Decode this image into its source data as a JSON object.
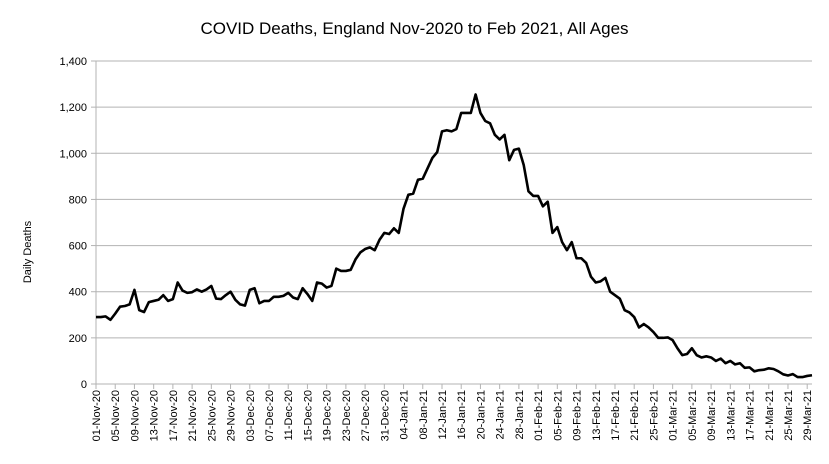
{
  "chart_data": {
    "type": "line",
    "title": "COVID Deaths, England Nov-2020 to Feb 2021, All Ages",
    "xlabel": "",
    "ylabel": "Daily Deaths",
    "ylim": [
      0,
      1400
    ],
    "yticks": [
      0,
      200,
      400,
      600,
      800,
      1000,
      1200,
      1400
    ],
    "ytick_labels": [
      "0",
      "200",
      "400",
      "600",
      "800",
      "1,000",
      "1,200",
      "1,400"
    ],
    "grid": true,
    "legend": "none",
    "line_color": "#000000",
    "x_tick_labels": [
      "01-Nov-20",
      "05-Nov-20",
      "09-Nov-20",
      "13-Nov-20",
      "17-Nov-20",
      "21-Nov-20",
      "25-Nov-20",
      "29-Nov-20",
      "03-Dec-20",
      "07-Dec-20",
      "11-Dec-20",
      "15-Dec-20",
      "19-Dec-20",
      "23-Dec-20",
      "27-Dec-20",
      "31-Dec-20",
      "04-Jan-21",
      "08-Jan-21",
      "12-Jan-21",
      "16-Jan-21",
      "20-Jan-21",
      "24-Jan-21",
      "28-Jan-21",
      "01-Feb-21",
      "05-Feb-21",
      "09-Feb-21",
      "13-Feb-21",
      "17-Feb-21",
      "21-Feb-21",
      "25-Feb-21",
      "01-Mar-21",
      "05-Mar-21",
      "09-Mar-21",
      "13-Mar-21",
      "17-Mar-21",
      "21-Mar-21",
      "25-Mar-21",
      "29-Mar-21"
    ],
    "x_start": "2020-11-01",
    "x_end": "2021-03-31",
    "values": [
      290,
      290,
      293,
      278,
      305,
      335,
      338,
      345,
      408,
      320,
      312,
      355,
      360,
      365,
      385,
      360,
      368,
      440,
      405,
      395,
      398,
      410,
      400,
      410,
      425,
      370,
      368,
      385,
      400,
      365,
      345,
      340,
      408,
      415,
      350,
      360,
      360,
      378,
      378,
      382,
      395,
      375,
      368,
      415,
      390,
      360,
      440,
      435,
      418,
      425,
      500,
      490,
      490,
      495,
      540,
      570,
      585,
      592,
      580,
      625,
      655,
      650,
      675,
      655,
      760,
      820,
      825,
      885,
      890,
      935,
      980,
      1005,
      1095,
      1100,
      1095,
      1105,
      1175,
      1175,
      1175,
      1255,
      1175,
      1140,
      1130,
      1080,
      1060,
      1080,
      970,
      1015,
      1020,
      950,
      835,
      815,
      815,
      770,
      790,
      655,
      680,
      615,
      580,
      615,
      545,
      545,
      525,
      465,
      440,
      445,
      460,
      400,
      385,
      370,
      320,
      310,
      290,
      245,
      260,
      245,
      225,
      200,
      200,
      202,
      190,
      155,
      125,
      130,
      155,
      125,
      115,
      120,
      115,
      100,
      110,
      90,
      100,
      85,
      90,
      70,
      72,
      55,
      60,
      62,
      68,
      65,
      55,
      42,
      37,
      43,
      30,
      30,
      35,
      38
    ]
  }
}
